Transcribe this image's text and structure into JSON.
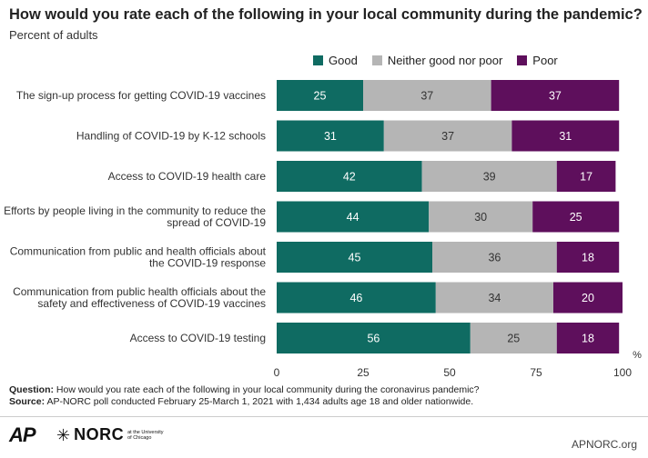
{
  "title": "How would you rate each of the following in your local community during the pandemic?",
  "subtitle": "Percent of adults",
  "colors": {
    "good": "#0f6b62",
    "neither": "#b5b5b5",
    "poor": "#5e0f5c"
  },
  "footnotes": {
    "question_label": "Question:",
    "question_text": "How would you rate each of the following in your local community during the coronavirus pandemic?",
    "source_label": "Source:",
    "source_text": "AP-NORC poll conducted February 25-March 1, 2021 with 1,434 adults age 18 and older nationwide."
  },
  "footer": {
    "ap_logo": "AP",
    "norc_logo": "NORC",
    "norc_small": "at the University of Chicago",
    "site": "APNORC.org"
  },
  "chart_data": {
    "type": "bar",
    "orientation": "horizontal",
    "stacked": true,
    "title": "How would you rate each of the following in your local community during the pandemic?",
    "subtitle": "Percent of adults",
    "categories": [
      "The sign-up process for getting COVID-19 vaccines",
      "Handling of COVID-19 by K-12 schools",
      "Access to COVID-19 health care",
      "Efforts by people living in the community to reduce the spread of COVID-19",
      "Communication from public and health officials about the COVID-19 response",
      "Communication from public health officials about the safety and effectiveness of COVID-19 vaccines",
      "Access to COVID-19 testing"
    ],
    "category_lines": [
      [
        "The sign-up process for getting COVID-19 vaccines"
      ],
      [
        "Handling of COVID-19 by K-12 schools"
      ],
      [
        "Access to COVID-19 health care"
      ],
      [
        "Efforts by people living in the community to reduce the",
        "spread of COVID-19"
      ],
      [
        "Communication from public and health officials about",
        "the COVID-19 response"
      ],
      [
        "Communication from public health officials about the",
        "safety and effectiveness of COVID-19 vaccines"
      ],
      [
        "Access to COVID-19 testing"
      ]
    ],
    "series": [
      {
        "name": "Good",
        "values": [
          25,
          31,
          42,
          44,
          45,
          46,
          56
        ]
      },
      {
        "name": "Neither good nor poor",
        "values": [
          37,
          37,
          39,
          30,
          36,
          34,
          25
        ]
      },
      {
        "name": "Poor",
        "values": [
          37,
          31,
          17,
          25,
          18,
          20,
          18
        ]
      }
    ],
    "xlim": [
      0,
      100
    ],
    "xticks": [
      0,
      25,
      50,
      75,
      100
    ],
    "xunit": "%",
    "legend": "top",
    "grid": false
  }
}
